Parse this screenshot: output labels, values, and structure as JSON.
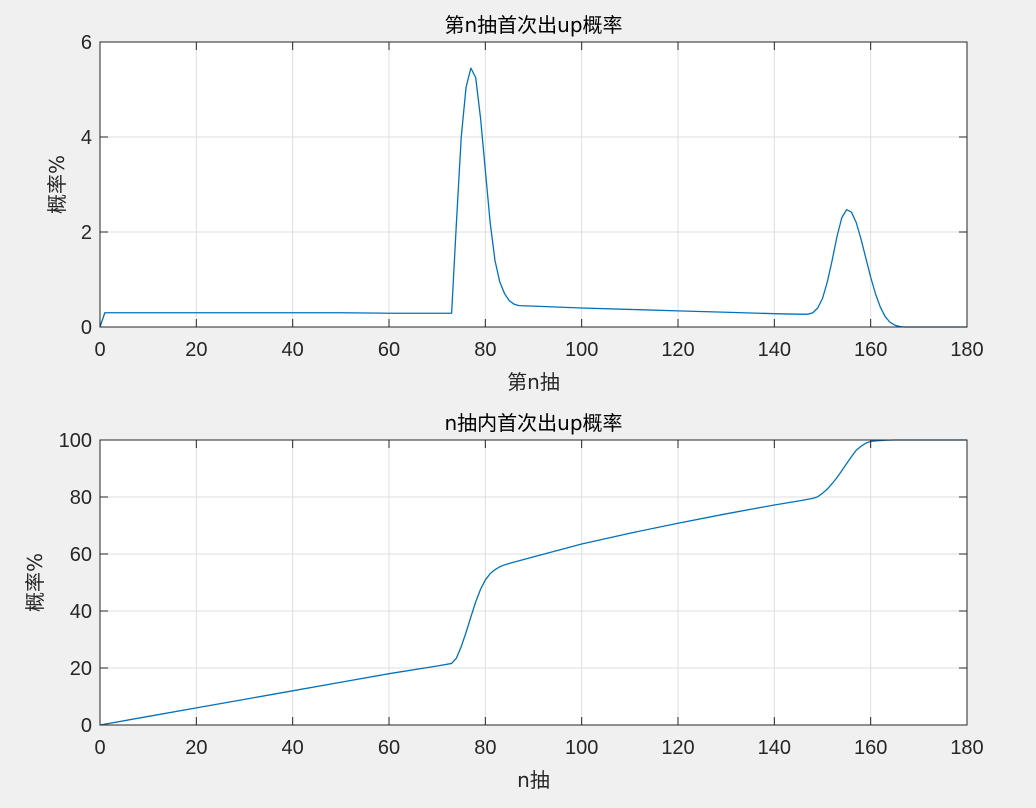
{
  "chart_data": [
    {
      "type": "line",
      "title": "第n抽首次出up概率",
      "xlabel": "第n抽",
      "ylabel": "概率%",
      "xlim": [
        0,
        180
      ],
      "ylim": [
        0,
        6
      ],
      "xticks": [
        "0",
        "20",
        "40",
        "60",
        "80",
        "100",
        "120",
        "140",
        "160",
        "180"
      ],
      "yticks": [
        "0",
        "2",
        "4",
        "6"
      ],
      "grid": true,
      "color": "#0072bd",
      "series": [
        {
          "x": [
            0,
            1,
            2,
            10,
            20,
            30,
            40,
            50,
            60,
            70,
            73,
            74,
            75,
            76,
            77,
            78,
            79,
            80,
            81,
            82,
            83,
            84,
            85,
            86,
            87,
            90,
            100,
            110,
            120,
            130,
            140,
            145,
            147,
            148,
            149,
            150,
            151,
            152,
            153,
            154,
            155,
            156,
            157,
            158,
            159,
            160,
            161,
            162,
            163,
            164,
            165,
            166,
            167,
            168,
            170,
            175,
            180
          ],
          "y": [
            0,
            0.3,
            0.3,
            0.3,
            0.3,
            0.3,
            0.3,
            0.3,
            0.29,
            0.29,
            0.29,
            2.2,
            4.0,
            5.05,
            5.45,
            5.25,
            4.4,
            3.3,
            2.2,
            1.4,
            0.95,
            0.7,
            0.55,
            0.48,
            0.45,
            0.44,
            0.4,
            0.37,
            0.34,
            0.31,
            0.28,
            0.27,
            0.27,
            0.3,
            0.4,
            0.6,
            0.95,
            1.4,
            1.9,
            2.3,
            2.47,
            2.42,
            2.2,
            1.85,
            1.45,
            1.05,
            0.7,
            0.42,
            0.22,
            0.1,
            0.04,
            0.01,
            0,
            0,
            0,
            0,
            0
          ]
        }
      ]
    },
    {
      "type": "line",
      "title": "n抽内首次出up概率",
      "xlabel": "n抽",
      "ylabel": "概率%",
      "xlim": [
        0,
        180
      ],
      "ylim": [
        0,
        100
      ],
      "xticks": [
        "0",
        "20",
        "40",
        "60",
        "80",
        "100",
        "120",
        "140",
        "160",
        "180"
      ],
      "yticks": [
        "0",
        "20",
        "40",
        "60",
        "80",
        "100"
      ],
      "grid": true,
      "color": "#0072bd",
      "series": [
        {
          "x": [
            0,
            10,
            20,
            30,
            40,
            50,
            60,
            70,
            73,
            74,
            75,
            76,
            77,
            78,
            79,
            80,
            81,
            82,
            83,
            84,
            85,
            90,
            100,
            110,
            120,
            130,
            140,
            145,
            148,
            149,
            150,
            151,
            152,
            153,
            154,
            155,
            156,
            157,
            158,
            159,
            160,
            161,
            162,
            163,
            164,
            165,
            166,
            170,
            175,
            180
          ],
          "y": [
            0,
            3,
            6,
            9,
            12,
            15,
            18,
            20.7,
            21.6,
            23.5,
            27.5,
            32.5,
            37.9,
            43.2,
            47.6,
            50.9,
            53.1,
            54.5,
            55.5,
            56.2,
            56.7,
            59,
            63.5,
            67.3,
            70.8,
            74.1,
            77.2,
            78.6,
            79.5,
            80.1,
            81.3,
            82.8,
            84.7,
            86.8,
            89.2,
            91.7,
            94.1,
            96.4,
            97.8,
            98.9,
            99.5,
            99.7,
            99.8,
            99.9,
            99.95,
            100,
            100,
            100,
            100,
            100
          ]
        }
      ]
    }
  ]
}
